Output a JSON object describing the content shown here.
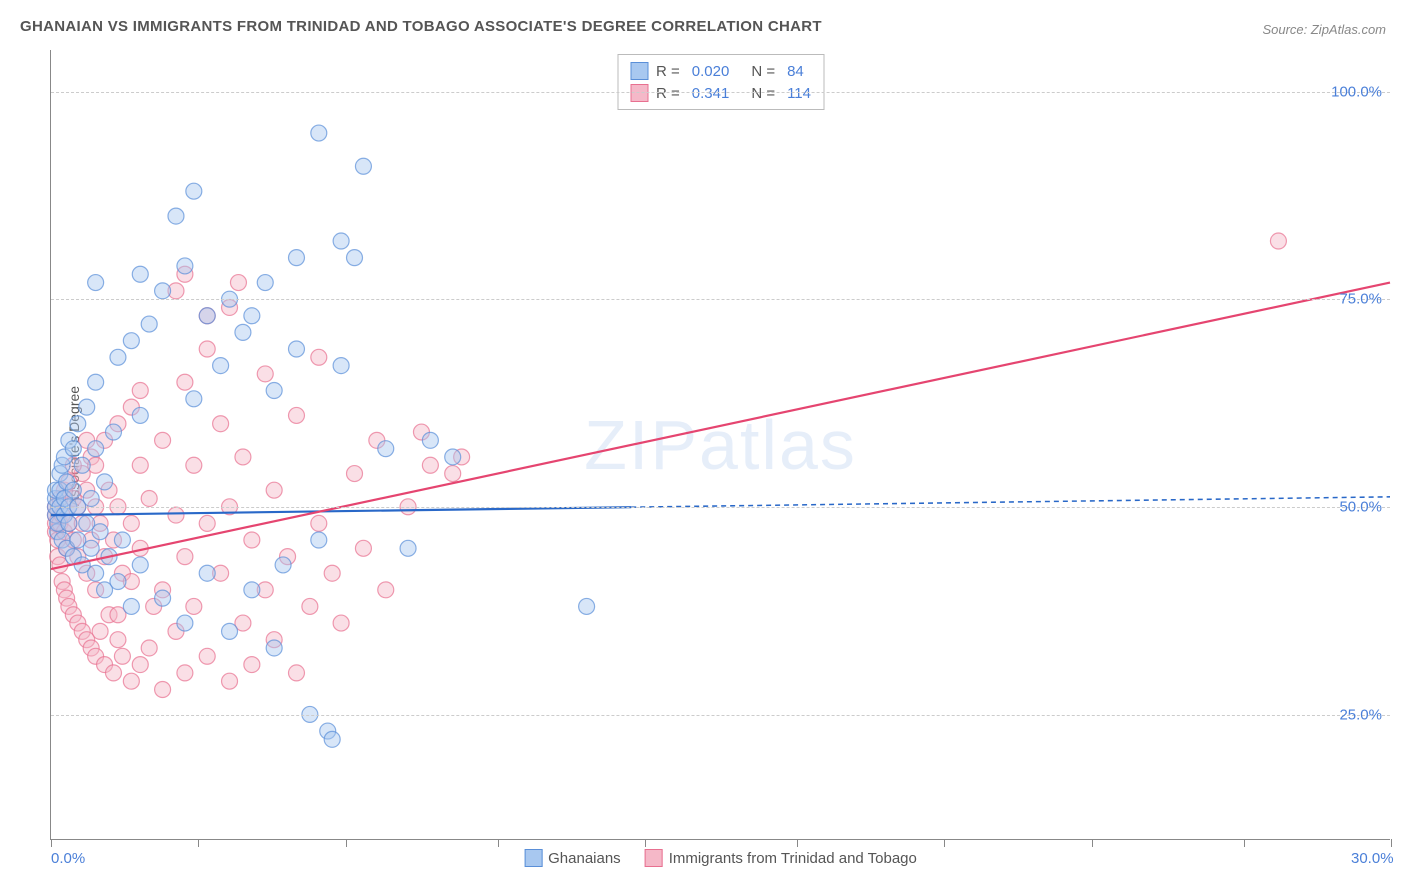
{
  "title": "GHANAIAN VS IMMIGRANTS FROM TRINIDAD AND TOBAGO ASSOCIATE'S DEGREE CORRELATION CHART",
  "source": "Source: ZipAtlas.com",
  "ylabel": "Associate's Degree",
  "watermark": "ZIPatlas",
  "chart": {
    "type": "scatter",
    "xlim": [
      0,
      30
    ],
    "ylim": [
      10,
      105
    ],
    "xtick_positions": [
      0,
      3.3,
      6.6,
      10,
      13.3,
      16.7,
      20,
      23.3,
      26.7,
      30
    ],
    "xtick_labels": {
      "0": "0.0%",
      "30": "30.0%"
    },
    "ytick_positions": [
      25,
      50,
      75,
      100
    ],
    "ytick_labels": {
      "25": "25.0%",
      "50": "50.0%",
      "75": "75.0%",
      "100": "100.0%"
    },
    "grid_color": "#cccccc",
    "axis_color": "#888888",
    "background_color": "#ffffff",
    "marker_radius": 8,
    "marker_opacity": 0.45,
    "marker_stroke_width": 1.2,
    "line_width": 2.2,
    "series": [
      {
        "name": "Ghanaians",
        "color_fill": "#a8c8f0",
        "color_stroke": "#5a8fd8",
        "line_color": "#2968c8",
        "R": "0.020",
        "N": "84",
        "trend": {
          "x1": 0,
          "y1": 49.0,
          "x2": 30,
          "y2": 51.2,
          "solid_until_x": 13
        },
        "points": [
          [
            0.1,
            49
          ],
          [
            0.1,
            50
          ],
          [
            0.1,
            51
          ],
          [
            0.1,
            52
          ],
          [
            0.15,
            47
          ],
          [
            0.15,
            48
          ],
          [
            0.2,
            50
          ],
          [
            0.2,
            52
          ],
          [
            0.2,
            54
          ],
          [
            0.25,
            46
          ],
          [
            0.25,
            55
          ],
          [
            0.3,
            49
          ],
          [
            0.3,
            51
          ],
          [
            0.3,
            56
          ],
          [
            0.35,
            45
          ],
          [
            0.35,
            53
          ],
          [
            0.4,
            48
          ],
          [
            0.4,
            50
          ],
          [
            0.4,
            58
          ],
          [
            0.5,
            44
          ],
          [
            0.5,
            52
          ],
          [
            0.5,
            57
          ],
          [
            0.6,
            46
          ],
          [
            0.6,
            50
          ],
          [
            0.6,
            60
          ],
          [
            0.7,
            43
          ],
          [
            0.7,
            55
          ],
          [
            0.8,
            48
          ],
          [
            0.8,
            62
          ],
          [
            0.9,
            45
          ],
          [
            0.9,
            51
          ],
          [
            1.0,
            42
          ],
          [
            1.0,
            57
          ],
          [
            1.0,
            65
          ],
          [
            1.1,
            47
          ],
          [
            1.2,
            40
          ],
          [
            1.2,
            53
          ],
          [
            1.3,
            44
          ],
          [
            1.4,
            59
          ],
          [
            1.5,
            41
          ],
          [
            1.5,
            68
          ],
          [
            1.6,
            46
          ],
          [
            1.8,
            38
          ],
          [
            1.8,
            70
          ],
          [
            2.0,
            43
          ],
          [
            2.0,
            61
          ],
          [
            2.2,
            72
          ],
          [
            2.5,
            39
          ],
          [
            2.5,
            76
          ],
          [
            2.8,
            85
          ],
          [
            3.0,
            36
          ],
          [
            3.0,
            79
          ],
          [
            3.2,
            88
          ],
          [
            3.5,
            42
          ],
          [
            3.5,
            73
          ],
          [
            3.8,
            67
          ],
          [
            4.0,
            35
          ],
          [
            4.0,
            75
          ],
          [
            4.3,
            71
          ],
          [
            4.5,
            40
          ],
          [
            4.8,
            77
          ],
          [
            5.0,
            33
          ],
          [
            5.0,
            64
          ],
          [
            5.2,
            43
          ],
          [
            5.5,
            69
          ],
          [
            5.8,
            25
          ],
          [
            6.0,
            46
          ],
          [
            6.0,
            95
          ],
          [
            6.2,
            23
          ],
          [
            6.3,
            22
          ],
          [
            6.5,
            82
          ],
          [
            6.8,
            80
          ],
          [
            7.0,
            91
          ],
          [
            7.5,
            57
          ],
          [
            8.0,
            45
          ],
          [
            8.5,
            58
          ],
          [
            9.0,
            56
          ],
          [
            12.0,
            38
          ],
          [
            2.0,
            78
          ],
          [
            3.2,
            63
          ],
          [
            4.5,
            73
          ],
          [
            5.5,
            80
          ],
          [
            6.5,
            67
          ],
          [
            1.0,
            77
          ]
        ]
      },
      {
        "name": "Immigrants from Trinidad and Tobago",
        "color_fill": "#f5b8c8",
        "color_stroke": "#e87090",
        "line_color": "#e54570",
        "R": "0.341",
        "N": "114",
        "trend": {
          "x1": 0,
          "y1": 42.5,
          "x2": 30,
          "y2": 77.0,
          "solid_until_x": 30
        },
        "points": [
          [
            0.1,
            47
          ],
          [
            0.1,
            48
          ],
          [
            0.1,
            49
          ],
          [
            0.1,
            50
          ],
          [
            0.15,
            46
          ],
          [
            0.15,
            44
          ],
          [
            0.2,
            43
          ],
          [
            0.2,
            48
          ],
          [
            0.2,
            51
          ],
          [
            0.25,
            41
          ],
          [
            0.25,
            49
          ],
          [
            0.3,
            40
          ],
          [
            0.3,
            47
          ],
          [
            0.3,
            52
          ],
          [
            0.35,
            39
          ],
          [
            0.35,
            45
          ],
          [
            0.4,
            38
          ],
          [
            0.4,
            48
          ],
          [
            0.4,
            53
          ],
          [
            0.5,
            37
          ],
          [
            0.5,
            46
          ],
          [
            0.5,
            51
          ],
          [
            0.6,
            36
          ],
          [
            0.6,
            44
          ],
          [
            0.6,
            50
          ],
          [
            0.7,
            35
          ],
          [
            0.7,
            48
          ],
          [
            0.7,
            54
          ],
          [
            0.8,
            34
          ],
          [
            0.8,
            42
          ],
          [
            0.8,
            52
          ],
          [
            0.9,
            33
          ],
          [
            0.9,
            46
          ],
          [
            0.9,
            56
          ],
          [
            1.0,
            32
          ],
          [
            1.0,
            40
          ],
          [
            1.0,
            50
          ],
          [
            1.1,
            35
          ],
          [
            1.1,
            48
          ],
          [
            1.2,
            31
          ],
          [
            1.2,
            44
          ],
          [
            1.2,
            58
          ],
          [
            1.3,
            37
          ],
          [
            1.3,
            52
          ],
          [
            1.4,
            30
          ],
          [
            1.4,
            46
          ],
          [
            1.5,
            34
          ],
          [
            1.5,
            50
          ],
          [
            1.5,
            60
          ],
          [
            1.6,
            32
          ],
          [
            1.6,
            42
          ],
          [
            1.8,
            29
          ],
          [
            1.8,
            48
          ],
          [
            1.8,
            62
          ],
          [
            2.0,
            31
          ],
          [
            2.0,
            45
          ],
          [
            2.0,
            55
          ],
          [
            2.2,
            33
          ],
          [
            2.2,
            51
          ],
          [
            2.5,
            28
          ],
          [
            2.5,
            40
          ],
          [
            2.5,
            58
          ],
          [
            2.8,
            35
          ],
          [
            2.8,
            49
          ],
          [
            3.0,
            30
          ],
          [
            3.0,
            44
          ],
          [
            3.0,
            65
          ],
          [
            3.2,
            38
          ],
          [
            3.2,
            55
          ],
          [
            3.5,
            32
          ],
          [
            3.5,
            48
          ],
          [
            3.5,
            73
          ],
          [
            3.8,
            42
          ],
          [
            3.8,
            60
          ],
          [
            4.0,
            29
          ],
          [
            4.0,
            50
          ],
          [
            4.0,
            74
          ],
          [
            4.3,
            36
          ],
          [
            4.3,
            56
          ],
          [
            4.5,
            31
          ],
          [
            4.5,
            46
          ],
          [
            4.8,
            40
          ],
          [
            4.8,
            66
          ],
          [
            5.0,
            34
          ],
          [
            5.0,
            52
          ],
          [
            5.3,
            44
          ],
          [
            5.5,
            30
          ],
          [
            5.5,
            61
          ],
          [
            5.8,
            38
          ],
          [
            6.0,
            48
          ],
          [
            6.0,
            68
          ],
          [
            6.3,
            42
          ],
          [
            6.5,
            36
          ],
          [
            6.8,
            54
          ],
          [
            7.0,
            45
          ],
          [
            7.3,
            58
          ],
          [
            7.5,
            40
          ],
          [
            8.0,
            50
          ],
          [
            8.3,
            59
          ],
          [
            8.5,
            55
          ],
          [
            9.0,
            54
          ],
          [
            9.2,
            56
          ],
          [
            27.5,
            82
          ],
          [
            1.5,
            37
          ],
          [
            2.0,
            64
          ],
          [
            2.8,
            76
          ],
          [
            3.5,
            69
          ],
          [
            4.2,
            77
          ],
          [
            1.0,
            55
          ],
          [
            1.8,
            41
          ],
          [
            2.3,
            38
          ],
          [
            3.0,
            78
          ],
          [
            0.5,
            55
          ],
          [
            0.8,
            58
          ]
        ]
      }
    ]
  },
  "legend_bottom": [
    {
      "label": "Ghanaians",
      "fill": "#a8c8f0",
      "stroke": "#5a8fd8"
    },
    {
      "label": "Immigrants from Trinidad and Tobago",
      "fill": "#f5b8c8",
      "stroke": "#e87090"
    }
  ]
}
